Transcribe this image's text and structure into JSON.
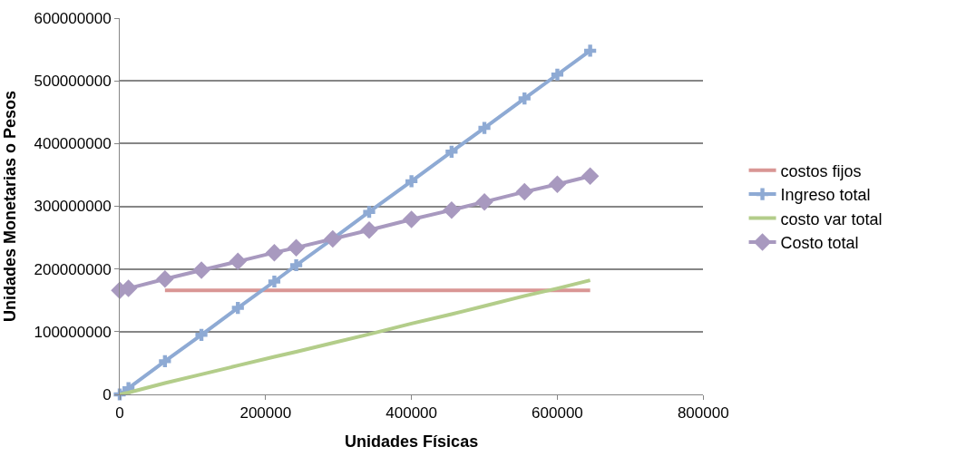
{
  "chart_data": {
    "type": "line",
    "x": [
      0,
      12000,
      62000,
      112000,
      162000,
      212000,
      242000,
      292000,
      342000,
      400000,
      455000,
      500000,
      555000,
      600000,
      645000
    ],
    "series": [
      {
        "name": "costos fijos",
        "color": "#d99694",
        "marker": "none",
        "values": [
          null,
          null,
          166000000,
          166000000,
          166000000,
          166000000,
          166000000,
          166000000,
          166000000,
          166000000,
          166000000,
          166000000,
          166000000,
          166000000,
          166000000
        ]
      },
      {
        "name": "Ingreso total",
        "color": "#8eaad4",
        "marker": "cross",
        "values": [
          0,
          10000000,
          53000000,
          95000000,
          138000000,
          180000000,
          206000000,
          248000000,
          291000000,
          340000000,
          387000000,
          425000000,
          472000000,
          510000000,
          548000000
        ]
      },
      {
        "name": "costo var total",
        "color": "#b3cd8a",
        "marker": "none",
        "values": [
          0,
          3000000,
          18000000,
          32000000,
          46000000,
          60000000,
          68000000,
          82000000,
          96000000,
          113000000,
          128000000,
          141000000,
          157000000,
          169000000,
          182000000
        ]
      },
      {
        "name": "Costo total",
        "color": "#a899bf",
        "marker": "diamond",
        "values": [
          166000000,
          169000000,
          184000000,
          198000000,
          212000000,
          226000000,
          234000000,
          248000000,
          262000000,
          279000000,
          294000000,
          307000000,
          323000000,
          335000000,
          348000000
        ]
      }
    ],
    "xlabel": "Unidades Físicas",
    "ylabel": "Unidades Monetarias o Pesos",
    "xlim": [
      0,
      800000
    ],
    "xticks": [
      0,
      200000,
      400000,
      600000,
      800000
    ],
    "ylim": [
      0,
      600000000
    ],
    "yticks": [
      0,
      100000000,
      200000000,
      300000000,
      400000000,
      500000000,
      600000000
    ],
    "grid": "y",
    "legend": "right",
    "line_style": "solid"
  }
}
